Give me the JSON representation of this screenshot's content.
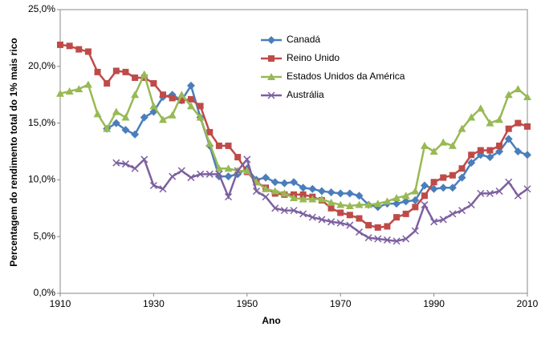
{
  "chart_data": {
    "type": "line",
    "x_label": "Ano",
    "y_label": "Percentagem do rendimento total do 1% mais rico",
    "x": [
      1910,
      1912,
      1914,
      1916,
      1918,
      1920,
      1922,
      1924,
      1926,
      1928,
      1930,
      1932,
      1934,
      1936,
      1938,
      1940,
      1942,
      1944,
      1946,
      1948,
      1950,
      1952,
      1954,
      1956,
      1958,
      1960,
      1962,
      1964,
      1966,
      1968,
      1970,
      1972,
      1974,
      1976,
      1978,
      1980,
      1982,
      1984,
      1986,
      1988,
      1990,
      1992,
      1994,
      1996,
      1998,
      2000,
      2002,
      2004,
      2006,
      2008,
      2010
    ],
    "xlim": [
      1910,
      2010
    ],
    "xticks": [
      1910,
      1930,
      1950,
      1970,
      1990,
      2010
    ],
    "ylim": [
      0,
      25
    ],
    "yticks": [
      {
        "value": 0,
        "label": "0,0%"
      },
      {
        "value": 5,
        "label": "5,0%"
      },
      {
        "value": 10,
        "label": "10,0%"
      },
      {
        "value": 15,
        "label": "15,0%"
      },
      {
        "value": 20,
        "label": "20,0%"
      },
      {
        "value": 25,
        "label": "25,0%"
      }
    ],
    "grid": false,
    "legend": "top-center",
    "series": [
      {
        "name": "Canadá",
        "color": "#4a7ebb",
        "marker": "diamond",
        "values": [
          null,
          null,
          null,
          null,
          null,
          14.5,
          15,
          14.4,
          14,
          15.5,
          16,
          17.3,
          17.5,
          17,
          18.3,
          15.5,
          13,
          10.3,
          10.3,
          10.5,
          11,
          10,
          10.2,
          9.8,
          9.7,
          9.8,
          9.3,
          9.2,
          9,
          8.9,
          8.8,
          8.8,
          8.6,
          7.8,
          7.6,
          7.9,
          7.9,
          8.1,
          8.2,
          9.5,
          9.2,
          9.3,
          9.3,
          10.2,
          11.5,
          12.2,
          12,
          12.5,
          13.6,
          12.5,
          12.2
        ]
      },
      {
        "name": "Reino Unido",
        "color": "#be4b48",
        "marker": "square",
        "values": [
          21.9,
          21.8,
          21.5,
          21.3,
          19.5,
          18.5,
          19.6,
          19.5,
          19,
          19,
          18.5,
          17.5,
          17.2,
          17,
          17.1,
          16.5,
          14.2,
          13,
          13,
          12,
          10.7,
          9.8,
          9.3,
          8.8,
          8.7,
          8.7,
          8.7,
          8.5,
          8.2,
          7.5,
          7.1,
          6.9,
          6.6,
          6,
          5.8,
          5.9,
          6.7,
          7,
          7.6,
          8.6,
          9.8,
          10.2,
          10.4,
          11,
          12.2,
          12.6,
          12.6,
          13,
          14.5,
          15,
          14.7
        ]
      },
      {
        "name": "Estados Unidos da América",
        "color": "#98b954",
        "marker": "triangle",
        "values": [
          17.6,
          17.8,
          18,
          18.4,
          15.8,
          14.5,
          16,
          15.5,
          17.5,
          19.3,
          16.5,
          15.3,
          15.7,
          17.5,
          16.5,
          15.5,
          13.2,
          11,
          11,
          10.8,
          10.8,
          9.8,
          9.2,
          9,
          8.8,
          8.4,
          8.3,
          8.3,
          8.3,
          8,
          7.8,
          7.7,
          7.8,
          7.8,
          7.9,
          8.1,
          8.4,
          8.6,
          9,
          13,
          12.5,
          13.3,
          13,
          14.5,
          15.5,
          16.3,
          15,
          15.3,
          17.5,
          18,
          17.3
        ]
      },
      {
        "name": "Austrália",
        "color": "#7d60a0",
        "marker": "cross",
        "values": [
          null,
          null,
          null,
          null,
          null,
          null,
          11.5,
          11.4,
          11,
          11.8,
          9.5,
          9.2,
          10.3,
          10.8,
          10.2,
          10.5,
          10.5,
          10.5,
          8.5,
          10.8,
          11.8,
          9,
          8.5,
          7.5,
          7.3,
          7.3,
          7,
          6.7,
          6.5,
          6.3,
          6.2,
          6,
          5.4,
          4.9,
          4.8,
          4.7,
          4.6,
          4.8,
          5.5,
          7.8,
          6.3,
          6.5,
          7,
          7.3,
          7.8,
          8.8,
          8.8,
          9,
          9.8,
          8.6,
          9.2
        ]
      }
    ]
  }
}
